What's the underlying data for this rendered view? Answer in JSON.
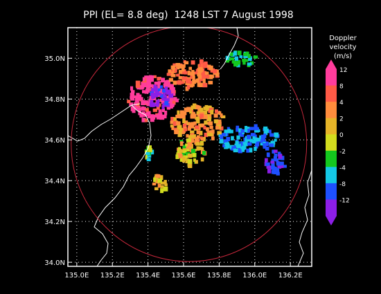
{
  "chart_data": {
    "type": "heatmap",
    "title": "PPI (EL= 8.8 deg)  1248 LST 7 August 1998",
    "x_ticks": [
      "135.0E",
      "135.2E",
      "135.4E",
      "135.6E",
      "135.8E",
      "136.0E",
      "136.2E"
    ],
    "y_ticks": [
      "35.0N",
      "34.8N",
      "34.6N",
      "34.4N",
      "34.2N",
      "34.0N"
    ],
    "xlim": [
      134.95,
      136.32
    ],
    "ylim": [
      33.98,
      35.15
    ],
    "x_tick_values": [
      135.0,
      135.2,
      135.4,
      135.6,
      135.8,
      136.0,
      136.2
    ],
    "y_tick_values": [
      35.0,
      34.8,
      34.6,
      34.4,
      34.2,
      34.0
    ],
    "grid": true,
    "legend": {
      "title_lines": [
        "Doppler",
        "velocity",
        "(m/s)"
      ],
      "labels": [
        "12",
        "8",
        "4",
        "2",
        "0",
        "-2",
        "-4",
        "-8",
        "-12"
      ],
      "colors": [
        "#ff3c9c",
        "#ff5a46",
        "#ff8c3c",
        "#e6b428",
        "#d2dc1e",
        "#14c81e",
        "#14c8e6",
        "#1e50ff",
        "#8c1ee6"
      ]
    },
    "range_ring": {
      "center_lon": 135.63,
      "center_lat": 34.58,
      "color": "#c8283c"
    },
    "echo_regions": [
      {
        "name": "west-core",
        "lon": [
          135.28,
          135.55
        ],
        "lat": [
          34.7,
          34.92
        ],
        "velocity": 12
      },
      {
        "name": "west-core-inner",
        "lon": [
          135.4,
          135.52
        ],
        "lat": [
          34.75,
          34.88
        ],
        "velocity": -12
      },
      {
        "name": "north-strip",
        "lon": [
          135.5,
          135.78
        ],
        "lat": [
          34.86,
          35.0
        ],
        "velocity": 6
      },
      {
        "name": "north-east",
        "lon": [
          135.82,
          136.0
        ],
        "lat": [
          34.97,
          35.04
        ],
        "velocity": -4
      },
      {
        "name": "central-band",
        "lon": [
          135.52,
          135.82
        ],
        "lat": [
          34.6,
          34.78
        ],
        "velocity": 4
      },
      {
        "name": "east-band",
        "lon": [
          135.78,
          136.12
        ],
        "lat": [
          34.55,
          34.68
        ],
        "velocity": -6
      },
      {
        "name": "east-tail",
        "lon": [
          136.05,
          136.16
        ],
        "lat": [
          34.44,
          34.56
        ],
        "velocity": -9
      },
      {
        "name": "radar-center",
        "lon": [
          135.55,
          135.72
        ],
        "lat": [
          34.48,
          34.62
        ],
        "velocity": 1
      },
      {
        "name": "south-spots",
        "lon": [
          135.42,
          135.5
        ],
        "lat": [
          34.36,
          34.44
        ],
        "velocity": 2
      },
      {
        "name": "west-green",
        "lon": [
          135.38,
          135.41
        ],
        "lat": [
          34.51,
          34.58
        ],
        "velocity": -2
      }
    ]
  }
}
